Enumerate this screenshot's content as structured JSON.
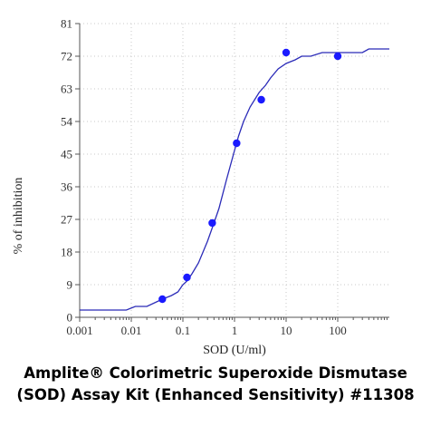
{
  "caption": {
    "line1": "Amplite® Colorimetric Superoxide Dismutase",
    "line2": "(SOD) Assay Kit (Enhanced Sensitivity) #11308"
  },
  "chart_data": {
    "type": "scatter",
    "xlabel": "SOD (U/ml)",
    "ylabel": "% of inhibition",
    "x_scale": "log",
    "xlim": [
      0.001,
      1000
    ],
    "ylim": [
      0,
      81
    ],
    "x_ticks": [
      "0.001",
      "0.01",
      "0.1",
      "1",
      "10",
      "100"
    ],
    "x_tick_values": [
      0.001,
      0.01,
      0.1,
      1,
      10,
      100
    ],
    "y_ticks": [
      "0",
      "9",
      "18",
      "27",
      "36",
      "45",
      "54",
      "63",
      "72",
      "81"
    ],
    "y_tick_values": [
      0,
      9,
      18,
      27,
      36,
      45,
      54,
      63,
      72,
      81
    ],
    "grid": true,
    "colors": {
      "series": "#1a1aff",
      "fit": "#2b2bb8",
      "grid": "#c8c8c8",
      "axis": "#555555"
    },
    "series": [
      {
        "x": [
          0.04,
          0.12,
          0.37,
          1.1,
          3.3,
          10,
          100
        ],
        "y": [
          5,
          11,
          26,
          48,
          60,
          73,
          72
        ]
      }
    ],
    "fit_curve": {
      "x": [
        0.001,
        0.008,
        0.012,
        0.02,
        0.04,
        0.06,
        0.08,
        0.1,
        0.12,
        0.15,
        0.2,
        0.3,
        0.4,
        0.5,
        0.7,
        1,
        1.2,
        1.5,
        2,
        3,
        4,
        5,
        7,
        10,
        15,
        20,
        30,
        50,
        100,
        300,
        400,
        1000
      ],
      "y": [
        2,
        2,
        3,
        3,
        5,
        6,
        7,
        9,
        10,
        12,
        15,
        21,
        26,
        30,
        38,
        46,
        50,
        54,
        58,
        62,
        64,
        66,
        68.5,
        70,
        71,
        72,
        72,
        73,
        73,
        73,
        74,
        74
      ]
    }
  }
}
